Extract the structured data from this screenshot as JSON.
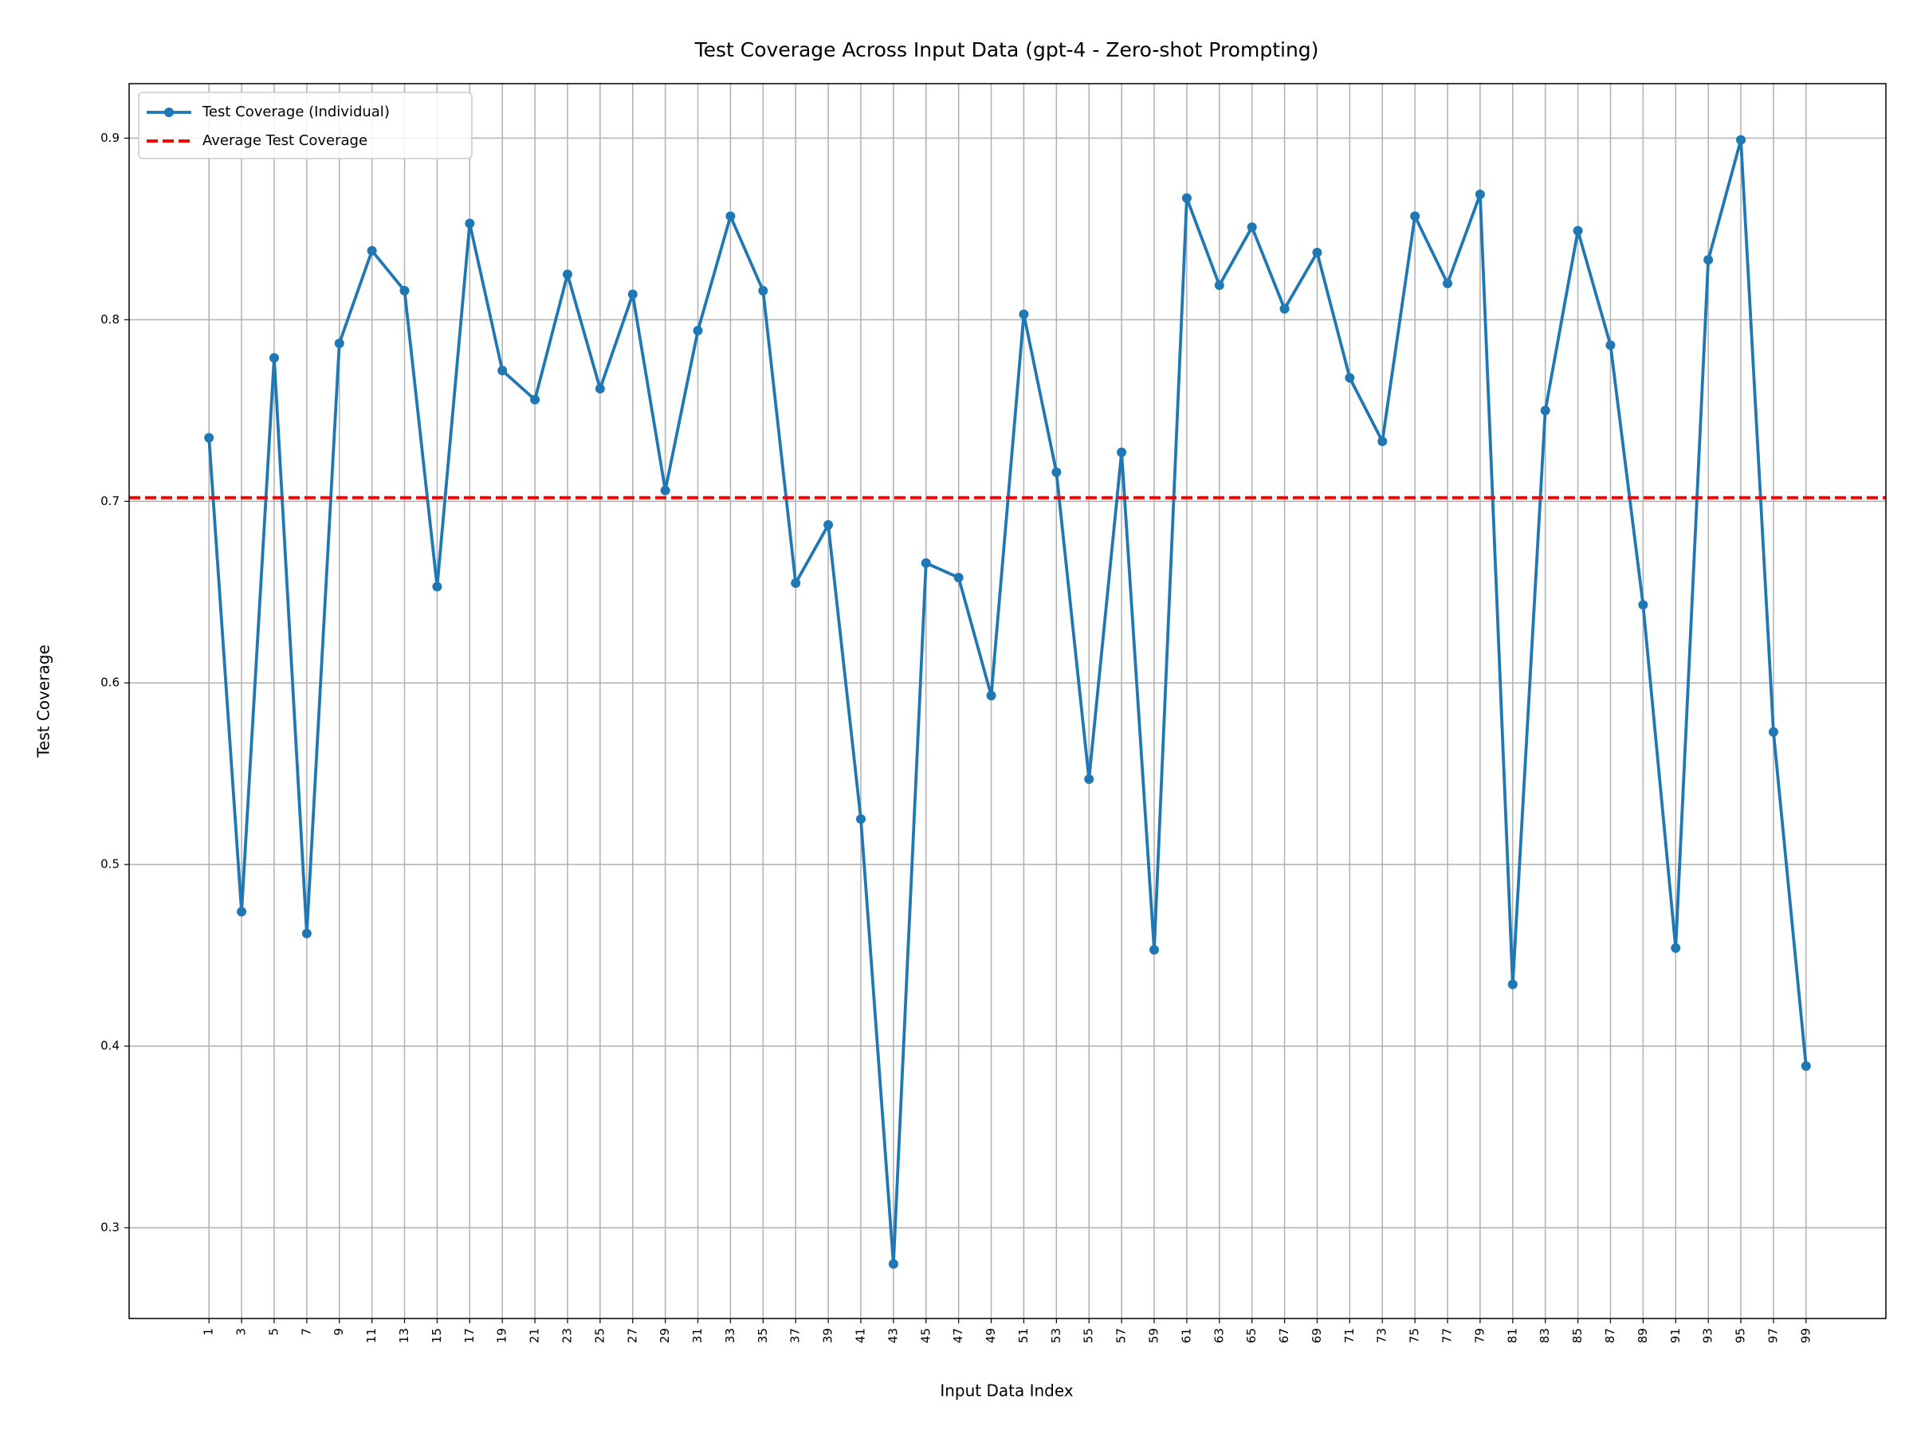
{
  "chart_data": {
    "type": "line",
    "title": "Test Coverage Across Input Data (gpt-4 - Zero-shot Prompting)",
    "xlabel": "Input Data Index",
    "ylabel": "Test Coverage",
    "x": [
      1,
      3,
      5,
      7,
      9,
      11,
      13,
      15,
      17,
      19,
      21,
      23,
      25,
      27,
      29,
      31,
      33,
      35,
      37,
      39,
      41,
      43,
      45,
      47,
      49,
      51,
      53,
      55,
      57,
      59,
      61,
      63,
      65,
      67,
      69,
      71,
      73,
      75,
      77,
      79,
      81,
      83,
      85,
      87,
      89,
      91,
      93,
      95,
      97,
      99
    ],
    "series": [
      {
        "name": "Test Coverage (Individual)",
        "color": "#1f77b4",
        "values": [
          0.735,
          0.474,
          0.779,
          0.462,
          0.787,
          0.838,
          0.816,
          0.653,
          0.853,
          0.772,
          0.756,
          0.825,
          0.762,
          0.814,
          0.706,
          0.794,
          0.857,
          0.816,
          0.655,
          0.687,
          0.525,
          0.28,
          0.666,
          0.658,
          0.593,
          0.803,
          0.716,
          0.547,
          0.727,
          0.453,
          0.867,
          0.819,
          0.851,
          0.806,
          0.837,
          0.768,
          0.733,
          0.857,
          0.82,
          0.869,
          0.434,
          0.75,
          0.849,
          0.786,
          0.643,
          0.454,
          0.833,
          0.899,
          0.573,
          0.389
        ]
      }
    ],
    "average": {
      "name": "Average Test Coverage",
      "color": "#ff0000",
      "value": 0.702
    },
    "xlim": [
      -3.9,
      103.9
    ],
    "ylim": [
      0.25,
      0.93
    ],
    "xticks": [
      1,
      3,
      5,
      7,
      9,
      11,
      13,
      15,
      17,
      19,
      21,
      23,
      25,
      27,
      29,
      31,
      33,
      35,
      37,
      39,
      41,
      43,
      45,
      47,
      49,
      51,
      53,
      55,
      57,
      59,
      61,
      63,
      65,
      67,
      69,
      71,
      73,
      75,
      77,
      79,
      81,
      83,
      85,
      87,
      89,
      91,
      93,
      95,
      97,
      99
    ],
    "yticks": [
      0.3,
      0.4,
      0.5,
      0.6,
      0.7,
      0.8,
      0.9
    ],
    "grid": true,
    "legend": "upper left"
  }
}
